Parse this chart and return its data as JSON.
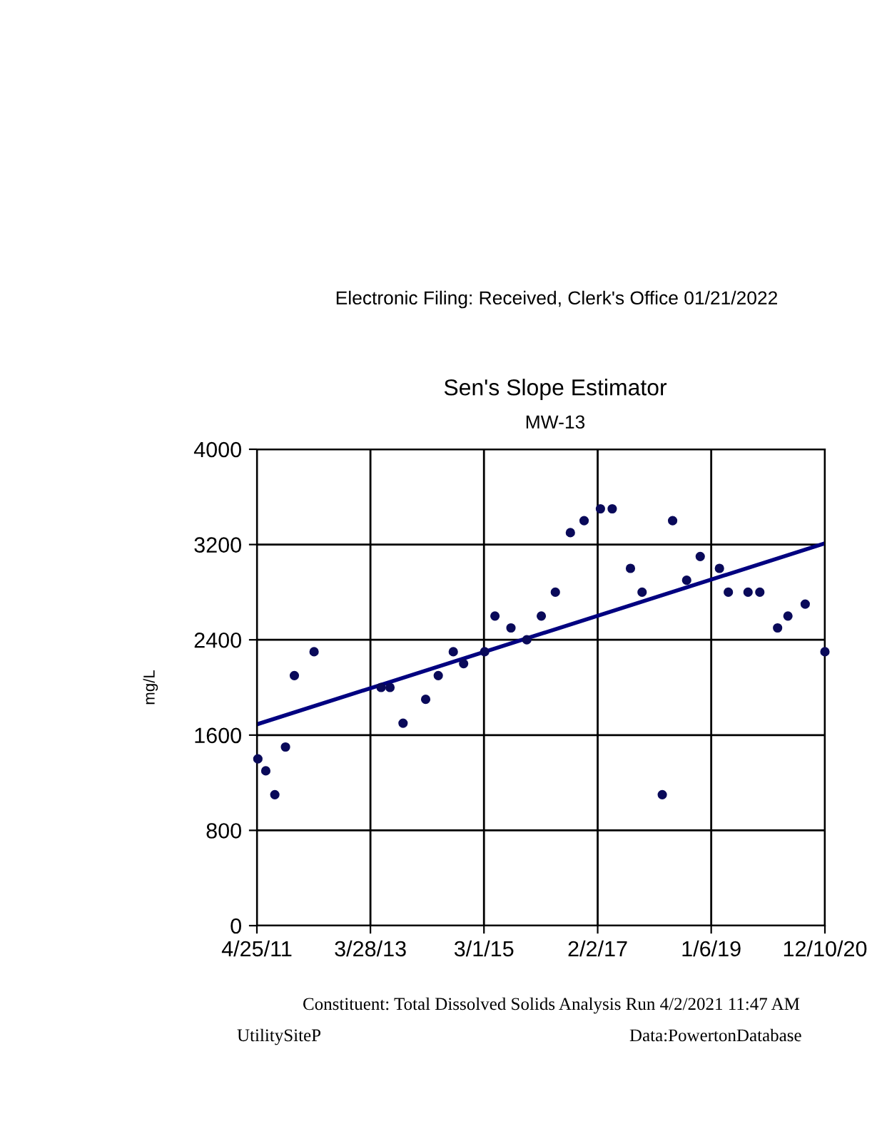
{
  "chart_data": {
    "type": "scatter",
    "title": "Sen's Slope Estimator",
    "subtitle": "MW-13",
    "ylabel": "mg/L",
    "annotations": [
      "Electronic Filing: Received, Clerk's Office 01/21/2022",
      "Constituent: Total Dissolved Solids Analysis Run 4/2/2021 11:47 AM",
      "UtilitySiteP",
      "Data:PowertonDatabase"
    ],
    "series": [
      {
        "color": "#0a0a5a",
        "marker": "circle",
        "x": [
          "2011-05-01",
          "2011-06-19",
          "2011-08-14",
          "2011-10-19",
          "2011-12-13",
          "2012-04-13",
          "2013-06-02",
          "2013-07-27",
          "2013-10-16",
          "2014-03-05",
          "2014-05-22",
          "2014-08-23",
          "2014-10-26",
          "2015-03-05",
          "2015-05-08",
          "2015-08-15",
          "2015-11-21",
          "2016-02-19",
          "2016-05-16",
          "2016-08-17",
          "2016-11-10",
          "2017-02-19",
          "2017-05-03",
          "2017-08-24",
          "2017-11-04",
          "2018-03-09",
          "2018-05-12",
          "2018-08-07",
          "2018-10-30",
          "2019-02-26",
          "2019-04-22",
          "2019-08-22",
          "2019-11-03",
          "2020-02-21",
          "2020-04-25",
          "2020-08-10",
          "2020-12-10"
        ],
        "values": [
          1400,
          1300,
          1100,
          1500,
          2100,
          2300,
          2000,
          2000,
          1700,
          1900,
          2100,
          2300,
          2200,
          2300,
          2600,
          2500,
          2400,
          2600,
          2800,
          3300,
          3400,
          3500,
          3500,
          3000,
          2800,
          1100,
          3400,
          2900,
          3100,
          3000,
          2800,
          2800,
          2800,
          2500,
          2600,
          2700,
          2300
        ]
      },
      {
        "type": "line",
        "color": "#000080",
        "marker": "none",
        "x": [
          "2011-04-25",
          "2020-12-10"
        ],
        "values": [
          1690,
          3210
        ]
      }
    ],
    "xlim": [
      "2011-04-25",
      "2020-12-10"
    ],
    "xticks": [
      {
        "value": "2011-04-25",
        "label": "4/25/11"
      },
      {
        "value": "2013-03-28",
        "label": "3/28/13"
      },
      {
        "value": "2015-03-01",
        "label": "3/1/15"
      },
      {
        "value": "2017-02-02",
        "label": "2/2/17"
      },
      {
        "value": "2019-01-06",
        "label": "1/6/19"
      },
      {
        "value": "2020-12-10",
        "label": "12/10/20"
      }
    ],
    "ylim": [
      0,
      4000
    ],
    "yticks": [
      0,
      800,
      1600,
      2400,
      3200,
      4000
    ],
    "grid": true
  }
}
